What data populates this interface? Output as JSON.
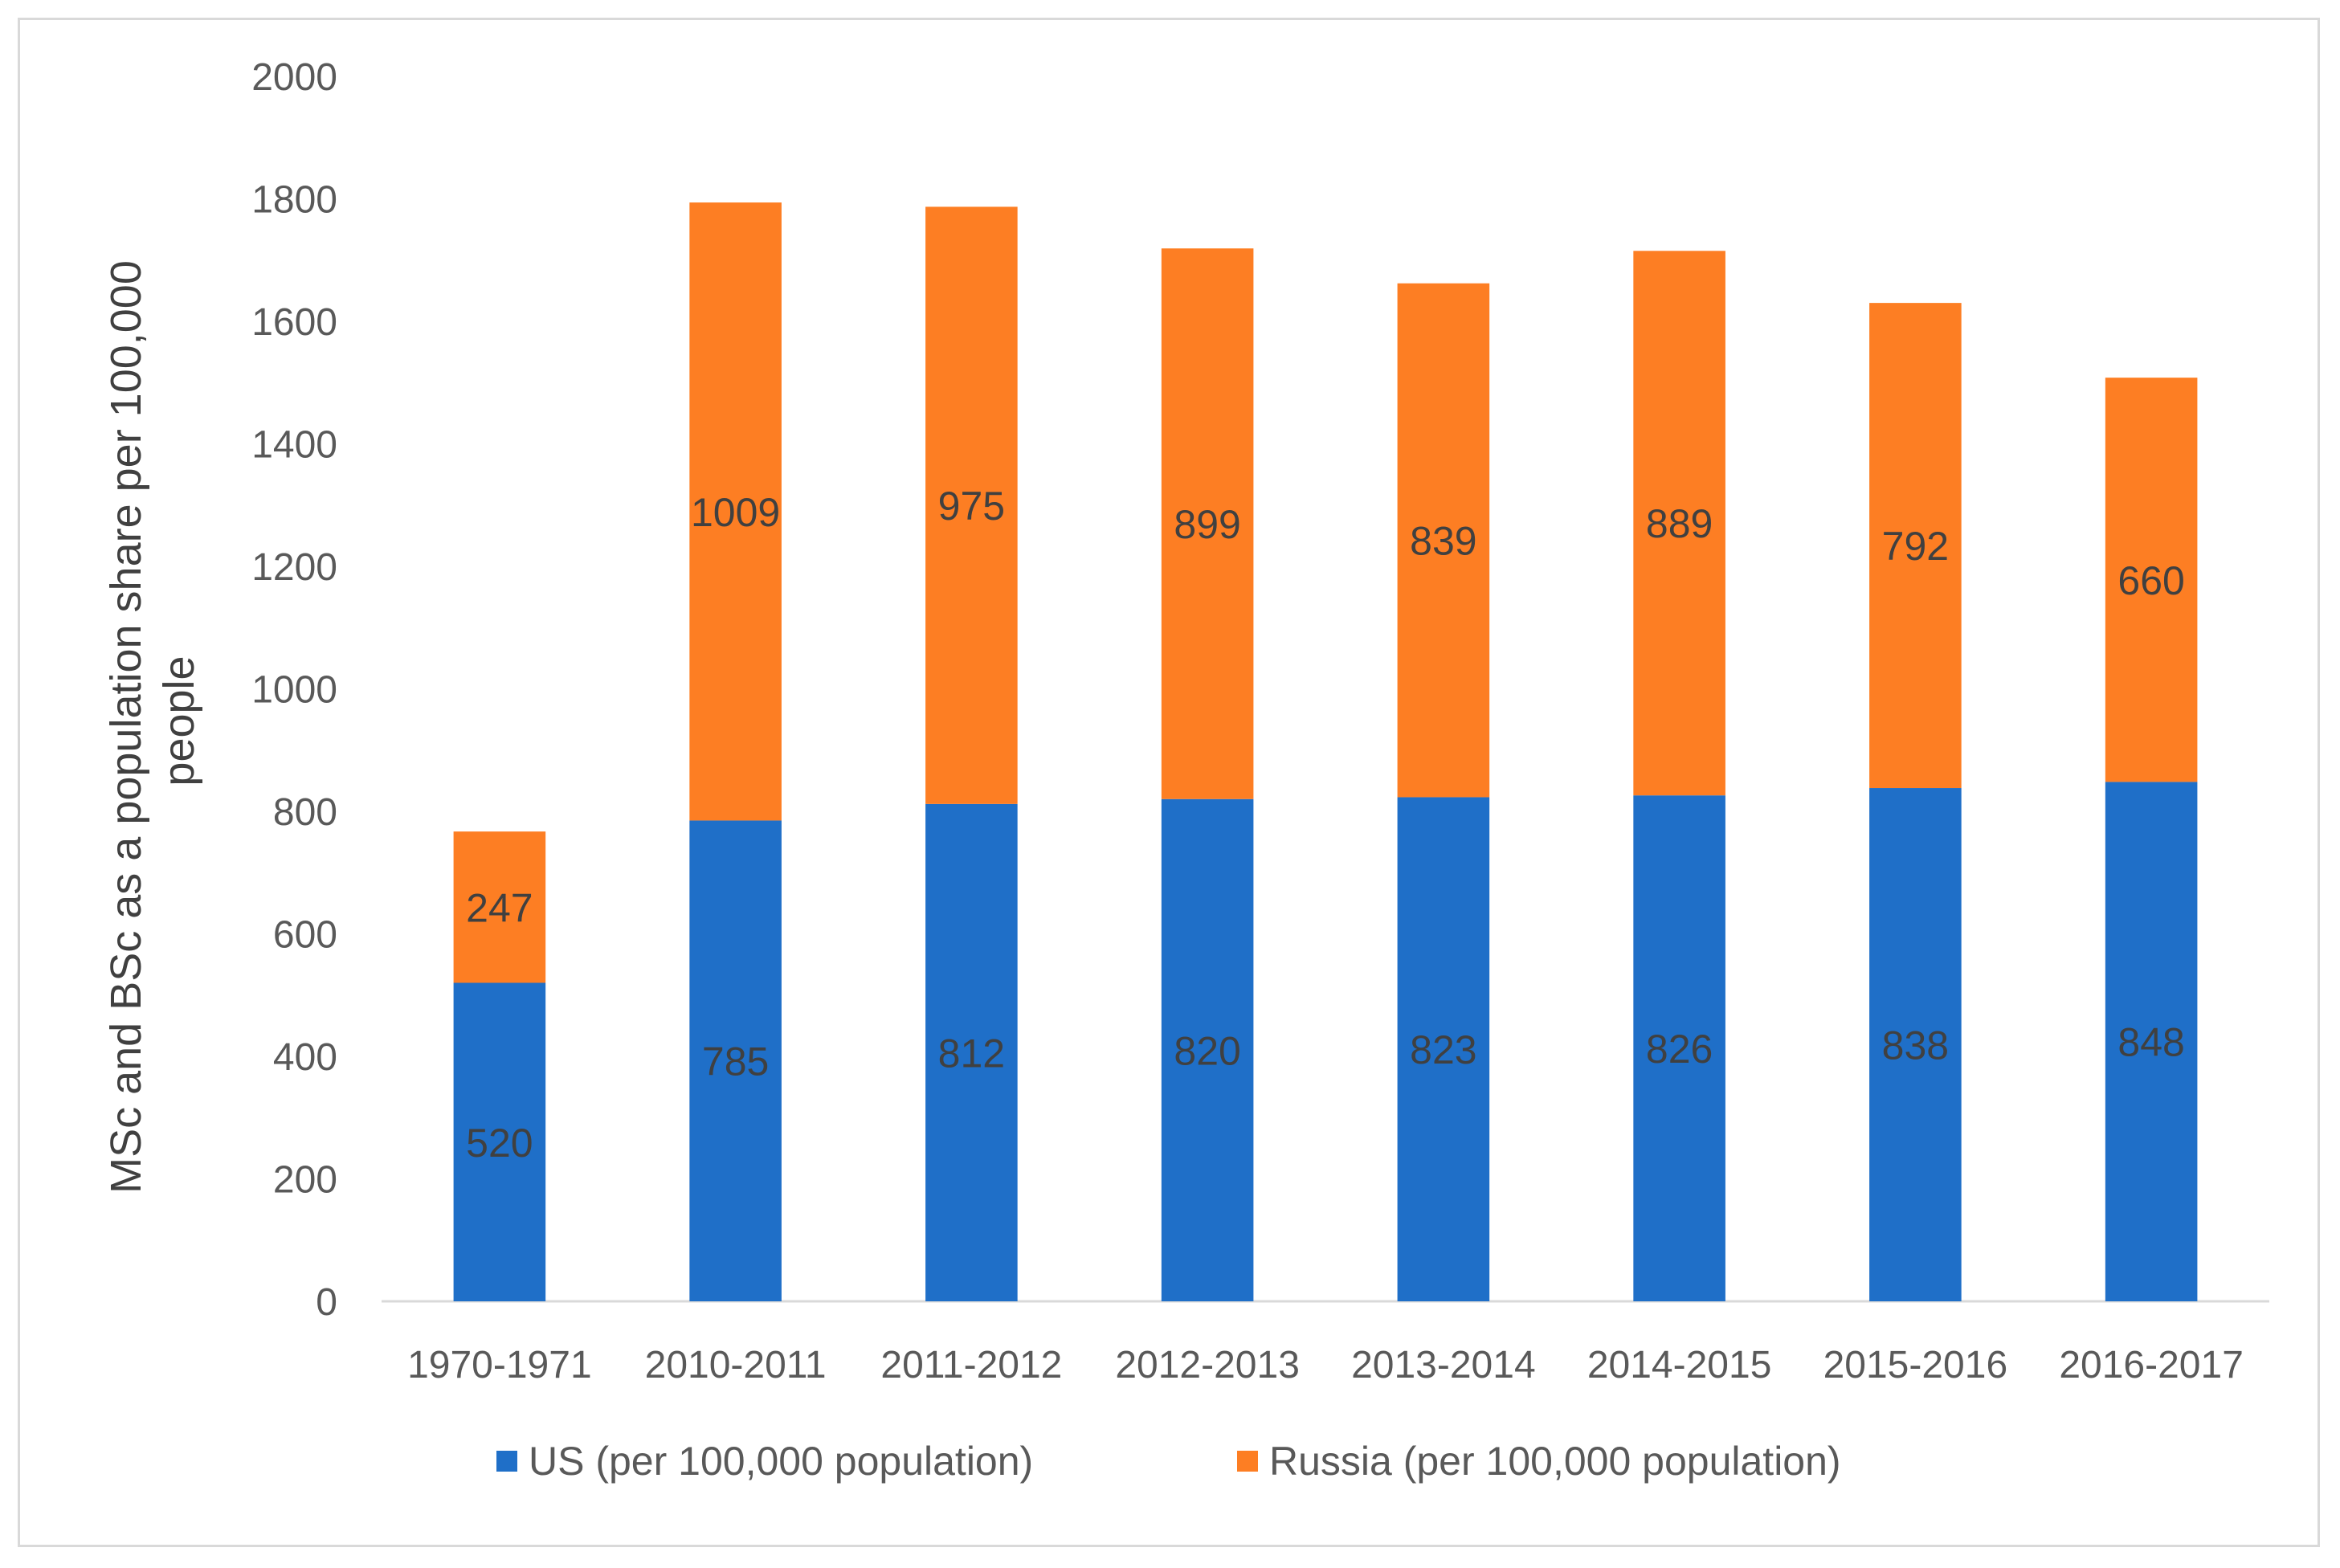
{
  "chart_data": {
    "type": "bar",
    "stacked": true,
    "title": "",
    "xlabel": "",
    "ylabel": "MSc and BSc as a population share per 100,000 people",
    "ylabel_lines": [
      "MSc and BSc as a population share per 100,000",
      "people"
    ],
    "ylim": [
      0,
      2000
    ],
    "yticks": [
      0,
      200,
      400,
      600,
      800,
      1000,
      1200,
      1400,
      1600,
      1800,
      2000
    ],
    "categories": [
      "1970-1971",
      "2010-2011",
      "2011-2012",
      "2012-2013",
      "2013-2014",
      "2014-2015",
      "2015-2016",
      "2016-2017"
    ],
    "series": [
      {
        "name": "US (per 100,000 population)",
        "color": "#1f6fc8",
        "values": [
          520,
          785,
          812,
          820,
          823,
          826,
          838,
          848
        ]
      },
      {
        "name": "Russia (per 100,000 population)",
        "color": "#fd7e23",
        "values": [
          247,
          1009,
          975,
          899,
          839,
          889,
          792,
          660
        ]
      }
    ],
    "grid": false,
    "legend": "bottom"
  }
}
